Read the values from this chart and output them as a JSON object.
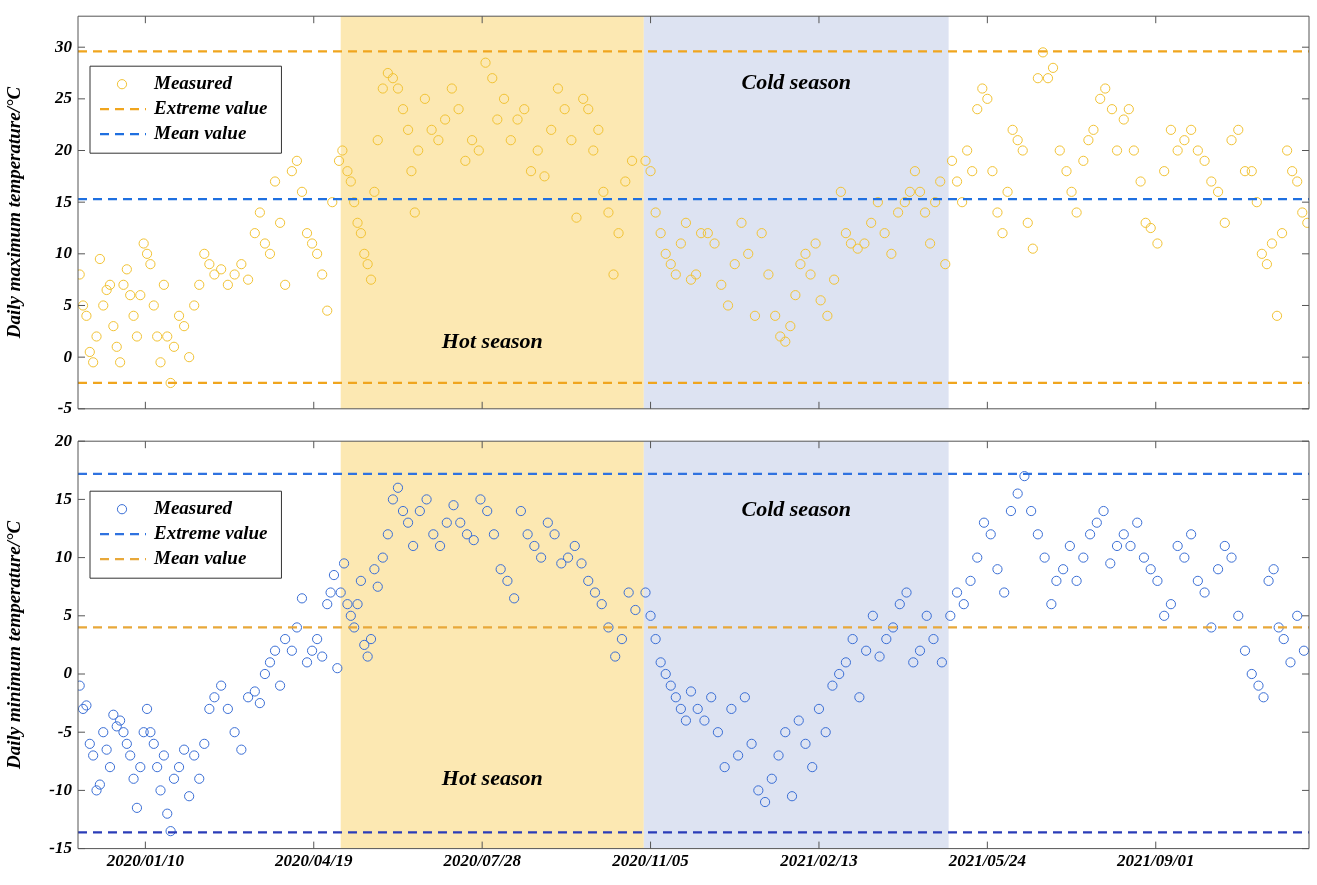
{
  "chart_data": [
    {
      "type": "scatter",
      "ylabel": "Daily maximum temperature/°C",
      "xlim": [
        "2019-12-01",
        "2021-12-01"
      ],
      "ylim": [
        -5,
        33
      ],
      "yticks": [
        -5,
        0,
        5,
        10,
        15,
        20,
        25,
        30
      ],
      "xticks": [
        {
          "value": "2020-01-10",
          "label": null
        },
        {
          "value": "2020-04-19",
          "label": null
        },
        {
          "value": "2020-07-28",
          "label": null
        },
        {
          "value": "2020-11-05",
          "label": null
        },
        {
          "value": "2021-02-13",
          "label": null
        },
        {
          "value": "2021-05-24",
          "label": null
        },
        {
          "value": "2021-09-01",
          "label": null
        }
      ],
      "tick_labels": "y",
      "grid": false,
      "legend": "top left",
      "marker": "circle",
      "bands": [
        {
          "axis": "x",
          "from": "2020-05-05",
          "to": "2020-11-01",
          "label": "Hot season",
          "color": "#fce8b2"
        },
        {
          "axis": "x",
          "from": "2020-11-01",
          "to": "2021-05-01",
          "label": "Cold season",
          "color": "#dde3f2"
        }
      ],
      "ref_lines": [
        {
          "axis": "y",
          "value": 29.6,
          "label": "Extreme value",
          "color": "#f0a51e",
          "line_style": "dashed"
        },
        {
          "axis": "y",
          "value": -2.5,
          "color": "#f0a51e",
          "line_style": "dashed"
        },
        {
          "axis": "y",
          "value": 15.3,
          "label": "Mean value",
          "color": "#1f6fe0",
          "line_style": "dashed"
        }
      ],
      "series": [
        {
          "name": "Measured",
          "color": "#f2c335",
          "x": [
            "2019-12-02",
            "2019-12-04",
            "2019-12-06",
            "2019-12-08",
            "2019-12-10",
            "2019-12-12",
            "2019-12-14",
            "2019-12-16",
            "2019-12-18",
            "2019-12-20",
            "2019-12-22",
            "2019-12-24",
            "2019-12-26",
            "2019-12-28",
            "2019-12-30",
            "2020-01-01",
            "2020-01-03",
            "2020-01-05",
            "2020-01-07",
            "2020-01-09",
            "2020-01-11",
            "2020-01-13",
            "2020-01-15",
            "2020-01-17",
            "2020-01-19",
            "2020-01-21",
            "2020-01-23",
            "2020-01-25",
            "2020-01-27",
            "2020-01-30",
            "2020-02-02",
            "2020-02-05",
            "2020-02-08",
            "2020-02-11",
            "2020-02-14",
            "2020-02-17",
            "2020-02-20",
            "2020-02-24",
            "2020-02-28",
            "2020-03-03",
            "2020-03-07",
            "2020-03-11",
            "2020-03-15",
            "2020-03-18",
            "2020-03-21",
            "2020-03-24",
            "2020-03-27",
            "2020-03-30",
            "2020-04-02",
            "2020-04-06",
            "2020-04-09",
            "2020-04-12",
            "2020-04-15",
            "2020-04-18",
            "2020-04-21",
            "2020-04-24",
            "2020-04-27",
            "2020-04-30",
            "2020-05-04",
            "2020-05-06",
            "2020-05-09",
            "2020-05-11",
            "2020-05-13",
            "2020-05-15",
            "2020-05-17",
            "2020-05-19",
            "2020-05-21",
            "2020-05-23",
            "2020-05-25",
            "2020-05-27",
            "2020-05-30",
            "2020-06-02",
            "2020-06-05",
            "2020-06-08",
            "2020-06-11",
            "2020-06-14",
            "2020-06-16",
            "2020-06-18",
            "2020-06-20",
            "2020-06-24",
            "2020-06-28",
            "2020-07-02",
            "2020-07-06",
            "2020-07-10",
            "2020-07-14",
            "2020-07-18",
            "2020-07-22",
            "2020-07-26",
            "2020-07-30",
            "2020-08-03",
            "2020-08-06",
            "2020-08-10",
            "2020-08-14",
            "2020-08-18",
            "2020-08-22",
            "2020-08-26",
            "2020-08-30",
            "2020-09-03",
            "2020-09-07",
            "2020-09-11",
            "2020-09-15",
            "2020-09-19",
            "2020-09-22",
            "2020-09-26",
            "2020-09-29",
            "2020-10-02",
            "2020-10-05",
            "2020-10-08",
            "2020-10-11",
            "2020-10-14",
            "2020-10-17",
            "2020-10-21",
            "2020-10-25",
            "2020-11-02",
            "2020-11-05",
            "2020-11-08",
            "2020-11-11",
            "2020-11-14",
            "2020-11-17",
            "2020-11-20",
            "2020-11-23",
            "2020-11-26",
            "2020-11-29",
            "2020-12-02",
            "2020-12-05",
            "2020-12-09",
            "2020-12-13",
            "2020-12-17",
            "2020-12-21",
            "2020-12-25",
            "2020-12-29",
            "2021-01-02",
            "2021-01-06",
            "2021-01-10",
            "2021-01-14",
            "2021-01-18",
            "2021-01-21",
            "2021-01-24",
            "2021-01-27",
            "2021-01-30",
            "2021-02-02",
            "2021-02-05",
            "2021-02-08",
            "2021-02-11",
            "2021-02-14",
            "2021-02-18",
            "2021-02-22",
            "2021-02-26",
            "2021-03-01",
            "2021-03-04",
            "2021-03-08",
            "2021-03-12",
            "2021-03-16",
            "2021-03-20",
            "2021-03-24",
            "2021-03-28",
            "2021-04-01",
            "2021-04-05",
            "2021-04-08",
            "2021-04-11",
            "2021-04-14",
            "2021-04-17",
            "2021-04-20",
            "2021-04-23",
            "2021-04-26",
            "2021-04-29",
            "2021-05-03",
            "2021-05-06",
            "2021-05-09",
            "2021-05-12",
            "2021-05-15",
            "2021-05-18",
            "2021-05-21",
            "2021-05-24",
            "2021-05-27",
            "2021-05-30",
            "2021-06-02",
            "2021-06-05",
            "2021-06-08",
            "2021-06-11",
            "2021-06-14",
            "2021-06-17",
            "2021-06-20",
            "2021-06-23",
            "2021-06-26",
            "2021-06-29",
            "2021-07-02",
            "2021-07-06",
            "2021-07-10",
            "2021-07-13",
            "2021-07-16",
            "2021-07-20",
            "2021-07-23",
            "2021-07-26",
            "2021-07-30",
            "2021-08-02",
            "2021-08-06",
            "2021-08-09",
            "2021-08-13",
            "2021-08-16",
            "2021-08-19",
            "2021-08-23",
            "2021-08-26",
            "2021-08-29",
            "2021-09-02",
            "2021-09-06",
            "2021-09-10",
            "2021-09-14",
            "2021-09-18",
            "2021-09-22",
            "2021-09-26",
            "2021-09-30",
            "2021-10-04",
            "2021-10-08",
            "2021-10-12",
            "2021-10-16",
            "2021-10-20",
            "2021-10-24",
            "2021-10-28",
            "2021-10-31",
            "2021-11-03",
            "2021-11-06",
            "2021-11-09",
            "2021-11-12",
            "2021-11-15",
            "2021-11-18",
            "2021-11-21",
            "2021-11-24",
            "2021-11-27",
            "2021-11-30"
          ],
          "values": [
            8,
            5,
            4,
            0.5,
            -0.5,
            2,
            9.5,
            5,
            6.5,
            7,
            3,
            1,
            -0.5,
            7,
            8.5,
            6,
            4,
            2,
            6,
            11,
            10,
            9,
            5,
            2,
            -0.5,
            7,
            2,
            -2.5,
            1,
            4,
            3,
            0,
            5,
            7,
            10,
            9,
            8,
            8.5,
            7,
            8,
            9,
            7.5,
            12,
            14,
            11,
            10,
            17,
            13,
            7,
            18,
            19,
            16,
            12,
            11,
            10,
            8,
            4.5,
            15,
            19,
            20,
            18,
            17,
            15,
            13,
            12,
            10,
            9,
            7.5,
            16,
            21,
            26,
            27.5,
            27,
            26,
            24,
            22,
            18,
            14,
            20,
            25,
            22,
            21,
            23,
            26,
            24,
            19,
            21,
            20,
            28.5,
            27,
            23,
            25,
            21,
            23,
            24,
            18,
            20,
            17.5,
            22,
            26,
            24,
            21,
            13.5,
            25,
            24,
            20,
            22,
            16,
            14,
            8,
            12,
            17,
            19,
            19,
            18,
            14,
            12,
            10,
            9,
            8,
            11,
            13,
            7.5,
            8,
            12,
            12,
            11,
            7,
            5,
            9,
            13,
            10,
            4,
            12,
            8,
            4,
            2,
            1.5,
            3,
            6,
            9,
            10,
            8,
            11,
            5.5,
            4,
            7.5,
            16,
            12,
            11,
            10.5,
            11,
            13,
            15,
            12,
            10,
            14,
            15,
            16,
            18,
            16,
            14,
            11,
            15,
            17,
            9,
            19,
            17,
            15,
            20,
            18,
            24,
            26,
            25,
            18,
            14,
            12,
            16,
            22,
            21,
            20,
            13,
            10.5,
            27,
            29.5,
            27,
            28,
            20,
            18,
            16,
            14,
            19,
            21,
            22,
            25,
            26,
            24,
            20,
            23,
            24,
            20,
            17,
            13,
            12.5,
            11,
            18,
            22,
            20,
            21,
            22,
            20,
            19,
            17,
            16,
            13,
            21,
            22,
            18,
            18,
            15,
            10,
            9,
            11,
            4,
            12,
            20,
            18,
            17,
            14,
            13
          ]
        }
      ]
    },
    {
      "type": "scatter",
      "ylabel": "Daily minimum temperature/°C",
      "xlim": [
        "2019-12-01",
        "2021-12-01"
      ],
      "ylim": [
        -15,
        20
      ],
      "yticks": [
        -15,
        -10,
        -5,
        0,
        5,
        10,
        15,
        20
      ],
      "xticks": [
        {
          "value": "2020-01-10",
          "label": "2020/01/10"
        },
        {
          "value": "2020-04-19",
          "label": "2020/04/19"
        },
        {
          "value": "2020-07-28",
          "label": "2020/07/28"
        },
        {
          "value": "2020-11-05",
          "label": "2020/11/05"
        },
        {
          "value": "2021-02-13",
          "label": "2021/02/13"
        },
        {
          "value": "2021-05-24",
          "label": "2021/05/24"
        },
        {
          "value": "2021-09-01",
          "label": "2021/09/01"
        }
      ],
      "grid": false,
      "legend": "top left",
      "marker": "circle",
      "bands": [
        {
          "axis": "x",
          "from": "2020-05-05",
          "to": "2020-11-01",
          "label": "Hot season",
          "color": "#fce8b2"
        },
        {
          "axis": "x",
          "from": "2020-11-01",
          "to": "2021-05-01",
          "label": "Cold season",
          "color": "#dde3f2"
        }
      ],
      "ref_lines": [
        {
          "axis": "y",
          "value": 17.2,
          "label": "Extreme value",
          "color": "#2f72e0",
          "line_style": "dashed"
        },
        {
          "axis": "y",
          "value": -13.6,
          "color": "#2a3cb8",
          "line_style": "dashed"
        },
        {
          "axis": "y",
          "value": 4,
          "label": "Mean value",
          "color": "#e8a83a",
          "line_style": "dashed"
        }
      ],
      "series": [
        {
          "name": "Measured",
          "color": "#3b6fd6",
          "x": [
            "2019-12-02",
            "2019-12-04",
            "2019-12-06",
            "2019-12-08",
            "2019-12-10",
            "2019-12-12",
            "2019-12-14",
            "2019-12-16",
            "2019-12-18",
            "2019-12-20",
            "2019-12-22",
            "2019-12-24",
            "2019-12-26",
            "2019-12-28",
            "2019-12-30",
            "2020-01-01",
            "2020-01-03",
            "2020-01-05",
            "2020-01-07",
            "2020-01-09",
            "2020-01-11",
            "2020-01-13",
            "2020-01-15",
            "2020-01-17",
            "2020-01-19",
            "2020-01-21",
            "2020-01-23",
            "2020-01-25",
            "2020-01-27",
            "2020-01-30",
            "2020-02-02",
            "2020-02-05",
            "2020-02-08",
            "2020-02-11",
            "2020-02-14",
            "2020-02-17",
            "2020-02-20",
            "2020-02-24",
            "2020-02-28",
            "2020-03-03",
            "2020-03-07",
            "2020-03-11",
            "2020-03-15",
            "2020-03-18",
            "2020-03-21",
            "2020-03-24",
            "2020-03-27",
            "2020-03-30",
            "2020-04-02",
            "2020-04-06",
            "2020-04-09",
            "2020-04-12",
            "2020-04-15",
            "2020-04-18",
            "2020-04-21",
            "2020-04-24",
            "2020-04-27",
            "2020-04-29",
            "2020-05-01",
            "2020-05-03",
            "2020-05-05",
            "2020-05-07",
            "2020-05-09",
            "2020-05-11",
            "2020-05-13",
            "2020-05-15",
            "2020-05-17",
            "2020-05-19",
            "2020-05-21",
            "2020-05-23",
            "2020-05-25",
            "2020-05-27",
            "2020-05-30",
            "2020-06-02",
            "2020-06-05",
            "2020-06-08",
            "2020-06-11",
            "2020-06-14",
            "2020-06-17",
            "2020-06-21",
            "2020-06-25",
            "2020-06-29",
            "2020-07-03",
            "2020-07-07",
            "2020-07-11",
            "2020-07-15",
            "2020-07-19",
            "2020-07-23",
            "2020-07-27",
            "2020-07-31",
            "2020-08-04",
            "2020-08-08",
            "2020-08-12",
            "2020-08-16",
            "2020-08-20",
            "2020-08-24",
            "2020-08-28",
            "2020-09-01",
            "2020-09-05",
            "2020-09-09",
            "2020-09-13",
            "2020-09-17",
            "2020-09-21",
            "2020-09-25",
            "2020-09-29",
            "2020-10-03",
            "2020-10-07",
            "2020-10-11",
            "2020-10-15",
            "2020-10-19",
            "2020-10-23",
            "2020-10-27",
            "2020-11-02",
            "2020-11-05",
            "2020-11-08",
            "2020-11-11",
            "2020-11-14",
            "2020-11-17",
            "2020-11-20",
            "2020-11-23",
            "2020-11-26",
            "2020-11-29",
            "2020-12-03",
            "2020-12-07",
            "2020-12-11",
            "2020-12-15",
            "2020-12-19",
            "2020-12-23",
            "2020-12-27",
            "2020-12-31",
            "2021-01-04",
            "2021-01-08",
            "2021-01-12",
            "2021-01-16",
            "2021-01-20",
            "2021-01-24",
            "2021-01-28",
            "2021-02-01",
            "2021-02-05",
            "2021-02-09",
            "2021-02-13",
            "2021-02-17",
            "2021-02-21",
            "2021-02-25",
            "2021-03-01",
            "2021-03-05",
            "2021-03-09",
            "2021-03-13",
            "2021-03-17",
            "2021-03-21",
            "2021-03-25",
            "2021-03-29",
            "2021-04-02",
            "2021-04-06",
            "2021-04-10",
            "2021-04-14",
            "2021-04-18",
            "2021-04-22",
            "2021-04-27",
            "2021-05-02",
            "2021-05-06",
            "2021-05-10",
            "2021-05-14",
            "2021-05-18",
            "2021-05-22",
            "2021-05-26",
            "2021-05-30",
            "2021-06-03",
            "2021-06-07",
            "2021-06-11",
            "2021-06-15",
            "2021-06-19",
            "2021-06-23",
            "2021-06-27",
            "2021-07-01",
            "2021-07-04",
            "2021-07-08",
            "2021-07-12",
            "2021-07-16",
            "2021-07-20",
            "2021-07-24",
            "2021-07-28",
            "2021-08-01",
            "2021-08-05",
            "2021-08-09",
            "2021-08-13",
            "2021-08-17",
            "2021-08-21",
            "2021-08-25",
            "2021-08-29",
            "2021-09-02",
            "2021-09-06",
            "2021-09-10",
            "2021-09-14",
            "2021-09-18",
            "2021-09-22",
            "2021-09-26",
            "2021-09-30",
            "2021-10-04",
            "2021-10-08",
            "2021-10-12",
            "2021-10-16",
            "2021-10-20",
            "2021-10-24",
            "2021-10-28",
            "2021-11-01",
            "2021-11-04",
            "2021-11-07",
            "2021-11-10",
            "2021-11-13",
            "2021-11-16",
            "2021-11-20",
            "2021-11-24",
            "2021-11-28"
          ],
          "values": [
            -1,
            -3,
            -2.7,
            -6,
            -7,
            -10,
            -9.5,
            -5,
            -6.5,
            -8,
            -3.5,
            -4.5,
            -4,
            -5,
            -6,
            -7,
            -9,
            -11.5,
            -8,
            -5,
            -3,
            -5,
            -6,
            -8,
            -10,
            -7,
            -12,
            -13.5,
            -9,
            -8,
            -6.5,
            -10.5,
            -7,
            -9,
            -6,
            -3,
            -2,
            -1,
            -3,
            -5,
            -6.5,
            -2,
            -1.5,
            -2.5,
            0,
            1,
            2,
            -1,
            3,
            2,
            4,
            6.5,
            1,
            2,
            3,
            1.5,
            6,
            7,
            8.5,
            0.5,
            7,
            9.5,
            6,
            5,
            4,
            6,
            8,
            2.5,
            1.5,
            3,
            9,
            7.5,
            10,
            12,
            15,
            16,
            14,
            13,
            11,
            14,
            15,
            12,
            11,
            13,
            14.5,
            13,
            12,
            11.5,
            15,
            14,
            12,
            9,
            8,
            6.5,
            14,
            12,
            11,
            10,
            13,
            12,
            9.5,
            10,
            11,
            9.5,
            8,
            7,
            6,
            4,
            1.5,
            3,
            7,
            5.5,
            7,
            5,
            3,
            1,
            0,
            -1,
            -2,
            -3,
            -4,
            -1.5,
            -3,
            -4,
            -2,
            -5,
            -8,
            -3,
            -7,
            -2,
            -6,
            -10,
            -11,
            -9,
            -7,
            -5,
            -10.5,
            -4,
            -6,
            -8,
            -3,
            -5,
            -1,
            0,
            1,
            3,
            -2,
            2,
            5,
            1.5,
            3,
            4,
            6,
            7,
            1,
            2,
            5,
            3,
            1,
            5,
            7,
            6,
            8,
            10,
            13,
            12,
            9,
            7,
            14,
            15.5,
            17,
            14,
            12,
            10,
            6,
            8,
            9,
            11,
            8,
            10,
            12,
            13,
            14,
            9.5,
            11,
            12,
            11,
            13,
            10,
            9,
            8,
            5,
            6,
            11,
            10,
            12,
            8,
            7,
            4,
            9,
            11,
            10,
            5,
            2,
            0,
            -1,
            -2,
            8,
            9,
            4,
            3,
            1,
            5,
            2
          ]
        }
      ]
    }
  ]
}
